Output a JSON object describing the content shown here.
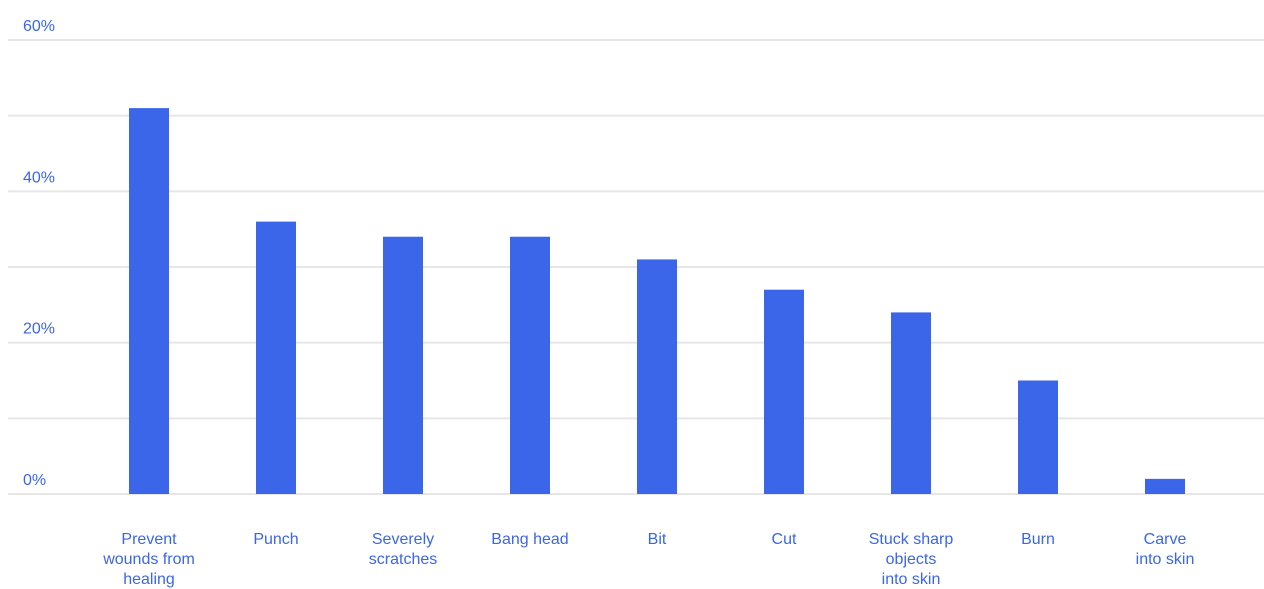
{
  "chart_data": {
    "type": "bar",
    "categories": [
      "Prevent wounds from healing",
      "Punch",
      "Severely scratches",
      "Bang head",
      "Bit",
      "Cut",
      "Stuck sharp objects into skin",
      "Burn",
      "Carve into skin"
    ],
    "category_lines": [
      [
        "Prevent",
        "wounds from",
        "healing"
      ],
      [
        "Punch"
      ],
      [
        "Severely",
        "scratches"
      ],
      [
        "Bang head"
      ],
      [
        "Bit"
      ],
      [
        "Cut"
      ],
      [
        "Stuck sharp",
        "objects",
        "into skin"
      ],
      [
        "Burn"
      ],
      [
        "Carve",
        "into skin"
      ]
    ],
    "values": [
      51,
      36,
      34,
      34,
      31,
      27,
      24,
      15,
      2
    ],
    "unit": "%",
    "ylim": [
      0,
      60
    ],
    "yticks": [
      0,
      10,
      20,
      30,
      40,
      50,
      60
    ],
    "ytick_labels": [
      "0%",
      "",
      "20%",
      "",
      "40%",
      "",
      "60%"
    ],
    "grid": true,
    "title": "",
    "xlabel": "",
    "ylabel": "",
    "colors": {
      "bar": "#3b66ea",
      "label": "#3b66ea",
      "grid": "#e6e6e6"
    }
  }
}
